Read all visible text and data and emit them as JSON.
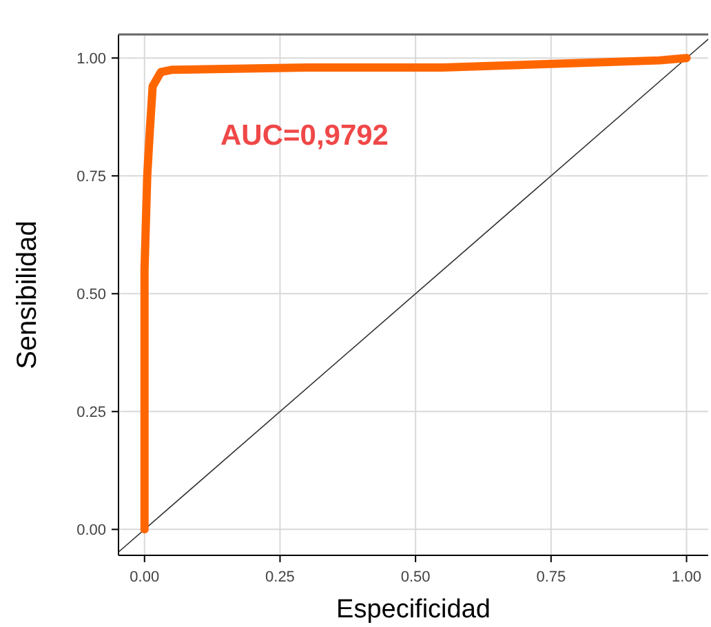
{
  "chart_data": {
    "type": "line",
    "xlabel": "Especificidad",
    "ylabel": "Sensibilidad",
    "xlim": [
      -0.048,
      1.04
    ],
    "ylim": [
      -0.055,
      1.05
    ],
    "xticks": [
      {
        "value": 0,
        "label": "0.00"
      },
      {
        "value": 0.25,
        "label": "0.25"
      },
      {
        "value": 0.5,
        "label": "0.50"
      },
      {
        "value": 0.75,
        "label": "0.75"
      },
      {
        "value": 1,
        "label": "1.00"
      }
    ],
    "yticks": [
      {
        "value": 0,
        "label": "0.00"
      },
      {
        "value": 0.25,
        "label": "0.25"
      },
      {
        "value": 0.5,
        "label": "0.50"
      },
      {
        "value": 0.75,
        "label": "0.75"
      },
      {
        "value": 1,
        "label": "1.00"
      }
    ],
    "grid": true,
    "annotations": [
      "AUC=0,9792"
    ],
    "series": [
      {
        "color": "#ff6600",
        "x": [
          0,
          0,
          0.005,
          0.01,
          0.015,
          0.03,
          0.05,
          0.3,
          0.55,
          0.95,
          1
        ],
        "values": [
          0,
          0.55,
          0.75,
          0.85,
          0.94,
          0.97,
          0.975,
          0.98,
          0.98,
          0.995,
          1
        ]
      },
      {
        "color": "#333333",
        "x": [
          -0.048,
          1.04
        ],
        "values": [
          -0.048,
          1.04
        ]
      }
    ]
  }
}
